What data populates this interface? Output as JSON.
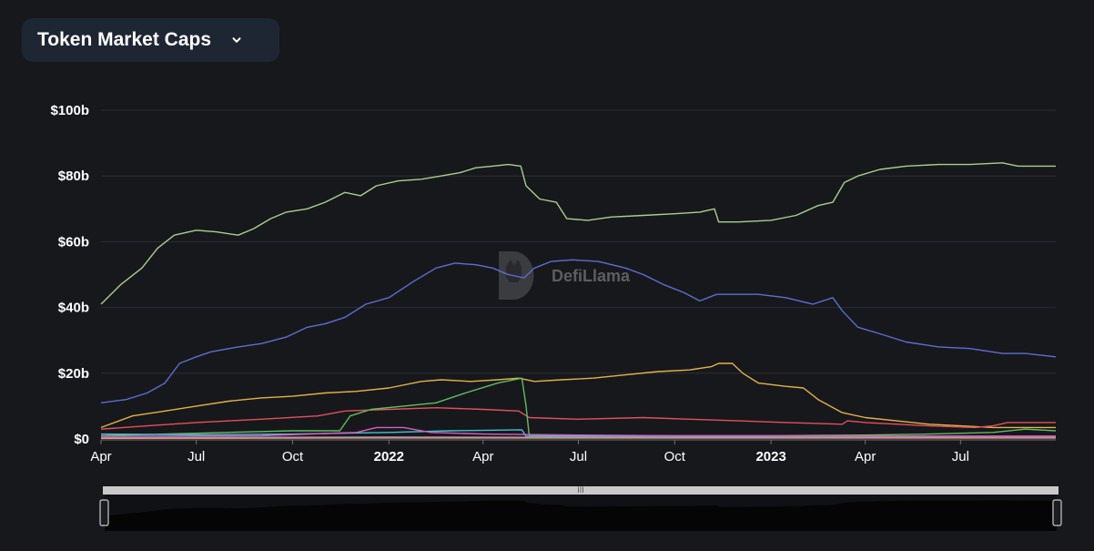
{
  "header": {
    "selector_label": "Token Market Caps",
    "chevron_icon": "chevron-down-icon"
  },
  "watermark": {
    "text": "DefiLlama",
    "icon": "llama-logo-icon"
  },
  "colors": {
    "background": "#17181c",
    "grid": "#2a2d35",
    "selector_bg": "#1e2633",
    "zoom_handle_bar": "#c9c9c9"
  },
  "chart_data": {
    "type": "line",
    "title": "",
    "xlabel": "",
    "ylabel": "",
    "x_range": [
      "2021-04-01",
      "2023-09-30"
    ],
    "y_range": [
      0,
      100
    ],
    "y_unit": "b",
    "grid": "horizontal",
    "y_ticks": [
      {
        "value": 0,
        "label": "$0"
      },
      {
        "value": 20,
        "label": "$20b"
      },
      {
        "value": 40,
        "label": "$40b"
      },
      {
        "value": 60,
        "label": "$60b"
      },
      {
        "value": 80,
        "label": "$80b"
      },
      {
        "value": 100,
        "label": "$100b"
      }
    ],
    "x_ticks": [
      {
        "date": "2021-04-01",
        "label": "Apr",
        "bold": false
      },
      {
        "date": "2021-07-01",
        "label": "Jul",
        "bold": false
      },
      {
        "date": "2021-10-01",
        "label": "Oct",
        "bold": false
      },
      {
        "date": "2022-01-01",
        "label": "2022",
        "bold": true
      },
      {
        "date": "2022-04-01",
        "label": "Apr",
        "bold": false
      },
      {
        "date": "2022-07-01",
        "label": "Jul",
        "bold": false
      },
      {
        "date": "2022-10-01",
        "label": "Oct",
        "bold": false
      },
      {
        "date": "2023-01-01",
        "label": "2023",
        "bold": true
      },
      {
        "date": "2023-04-01",
        "label": "Apr",
        "bold": false
      },
      {
        "date": "2023-07-01",
        "label": "Jul",
        "bold": false
      }
    ],
    "series": [
      {
        "color": "#a8d08d",
        "points": [
          [
            "2021-04-01",
            41
          ],
          [
            "2021-04-20",
            47
          ],
          [
            "2021-05-10",
            52
          ],
          [
            "2021-05-25",
            58
          ],
          [
            "2021-06-10",
            62
          ],
          [
            "2021-07-01",
            63.5
          ],
          [
            "2021-07-20",
            63
          ],
          [
            "2021-08-10",
            62
          ],
          [
            "2021-08-25",
            64
          ],
          [
            "2021-09-10",
            67
          ],
          [
            "2021-09-25",
            69
          ],
          [
            "2021-10-15",
            70
          ],
          [
            "2021-11-01",
            72
          ],
          [
            "2021-11-20",
            75
          ],
          [
            "2021-12-05",
            74
          ],
          [
            "2021-12-20",
            77
          ],
          [
            "2022-01-10",
            78.5
          ],
          [
            "2022-02-01",
            79
          ],
          [
            "2022-02-20",
            80
          ],
          [
            "2022-03-10",
            81
          ],
          [
            "2022-03-25",
            82.5
          ],
          [
            "2022-04-10",
            83
          ],
          [
            "2022-04-25",
            83.5
          ],
          [
            "2022-05-07",
            83
          ],
          [
            "2022-05-12",
            77
          ],
          [
            "2022-05-25",
            73
          ],
          [
            "2022-06-10",
            72
          ],
          [
            "2022-06-20",
            67
          ],
          [
            "2022-07-10",
            66.5
          ],
          [
            "2022-08-01",
            67.5
          ],
          [
            "2022-09-01",
            68
          ],
          [
            "2022-10-01",
            68.5
          ],
          [
            "2022-10-25",
            69
          ],
          [
            "2022-11-08",
            70
          ],
          [
            "2022-11-12",
            66
          ],
          [
            "2022-12-01",
            66
          ],
          [
            "2023-01-01",
            66.5
          ],
          [
            "2023-01-25",
            68
          ],
          [
            "2023-02-15",
            71
          ],
          [
            "2023-03-01",
            72
          ],
          [
            "2023-03-12",
            78
          ],
          [
            "2023-03-25",
            80
          ],
          [
            "2023-04-15",
            82
          ],
          [
            "2023-05-10",
            83
          ],
          [
            "2023-06-10",
            83.5
          ],
          [
            "2023-07-10",
            83.5
          ],
          [
            "2023-08-10",
            84
          ],
          [
            "2023-08-25",
            83
          ],
          [
            "2023-09-30",
            83
          ]
        ]
      },
      {
        "color": "#5b6fd0",
        "points": [
          [
            "2021-04-01",
            11
          ],
          [
            "2021-04-25",
            12
          ],
          [
            "2021-05-15",
            14
          ],
          [
            "2021-06-01",
            17
          ],
          [
            "2021-06-15",
            23
          ],
          [
            "2021-07-01",
            25
          ],
          [
            "2021-07-15",
            26.5
          ],
          [
            "2021-08-10",
            28
          ],
          [
            "2021-09-01",
            29
          ],
          [
            "2021-09-25",
            31
          ],
          [
            "2021-10-15",
            34
          ],
          [
            "2021-11-01",
            35
          ],
          [
            "2021-11-20",
            37
          ],
          [
            "2021-12-10",
            41
          ],
          [
            "2022-01-01",
            43
          ],
          [
            "2022-01-25",
            48
          ],
          [
            "2022-02-15",
            52
          ],
          [
            "2022-03-05",
            53.5
          ],
          [
            "2022-03-25",
            53
          ],
          [
            "2022-04-10",
            52
          ],
          [
            "2022-04-25",
            50
          ],
          [
            "2022-05-10",
            49
          ],
          [
            "2022-05-20",
            52
          ],
          [
            "2022-06-05",
            54
          ],
          [
            "2022-06-25",
            54.5
          ],
          [
            "2022-07-20",
            54
          ],
          [
            "2022-08-15",
            52
          ],
          [
            "2022-09-01",
            50
          ],
          [
            "2022-09-20",
            47
          ],
          [
            "2022-10-10",
            44.5
          ],
          [
            "2022-10-25",
            42
          ],
          [
            "2022-11-10",
            44
          ],
          [
            "2022-12-01",
            44
          ],
          [
            "2022-12-20",
            44
          ],
          [
            "2023-01-15",
            43
          ],
          [
            "2023-02-10",
            41
          ],
          [
            "2023-03-01",
            43
          ],
          [
            "2023-03-10",
            39
          ],
          [
            "2023-03-25",
            34
          ],
          [
            "2023-04-15",
            32
          ],
          [
            "2023-05-10",
            29.5
          ],
          [
            "2023-06-10",
            28
          ],
          [
            "2023-07-10",
            27.5
          ],
          [
            "2023-08-10",
            26
          ],
          [
            "2023-09-01",
            26
          ],
          [
            "2023-09-30",
            25
          ]
        ]
      },
      {
        "color": "#e3b247",
        "points": [
          [
            "2021-04-01",
            3.5
          ],
          [
            "2021-05-01",
            7
          ],
          [
            "2021-06-01",
            8.5
          ],
          [
            "2021-07-01",
            10
          ],
          [
            "2021-08-01",
            11.5
          ],
          [
            "2021-09-01",
            12.5
          ],
          [
            "2021-10-01",
            13
          ],
          [
            "2021-11-01",
            14
          ],
          [
            "2021-12-01",
            14.5
          ],
          [
            "2022-01-01",
            15.5
          ],
          [
            "2022-02-01",
            17.5
          ],
          [
            "2022-02-20",
            18
          ],
          [
            "2022-03-20",
            17.5
          ],
          [
            "2022-04-15",
            18
          ],
          [
            "2022-05-05",
            18.5
          ],
          [
            "2022-05-20",
            17.5
          ],
          [
            "2022-06-15",
            18
          ],
          [
            "2022-07-15",
            18.5
          ],
          [
            "2022-08-15",
            19.5
          ],
          [
            "2022-09-15",
            20.5
          ],
          [
            "2022-10-15",
            21
          ],
          [
            "2022-11-05",
            22
          ],
          [
            "2022-11-12",
            23
          ],
          [
            "2022-11-25",
            23
          ],
          [
            "2022-12-05",
            20
          ],
          [
            "2022-12-20",
            17
          ],
          [
            "2023-01-15",
            16
          ],
          [
            "2023-02-01",
            15.5
          ],
          [
            "2023-02-15",
            12
          ],
          [
            "2023-03-10",
            8
          ],
          [
            "2023-04-01",
            6.5
          ],
          [
            "2023-05-01",
            5.5
          ],
          [
            "2023-06-01",
            4.5
          ],
          [
            "2023-07-01",
            4
          ],
          [
            "2023-08-01",
            3.5
          ],
          [
            "2023-09-30",
            3.5
          ]
        ]
      },
      {
        "color": "#e0525b",
        "points": [
          [
            "2021-04-01",
            3
          ],
          [
            "2021-05-15",
            4
          ],
          [
            "2021-07-01",
            5
          ],
          [
            "2021-09-01",
            6
          ],
          [
            "2021-10-25",
            7
          ],
          [
            "2021-11-20",
            8.5
          ],
          [
            "2022-01-01",
            9
          ],
          [
            "2022-02-15",
            9.5
          ],
          [
            "2022-04-01",
            9
          ],
          [
            "2022-05-05",
            8.5
          ],
          [
            "2022-05-15",
            6.5
          ],
          [
            "2022-07-01",
            6
          ],
          [
            "2022-09-01",
            6.5
          ],
          [
            "2022-10-15",
            6
          ],
          [
            "2022-12-01",
            5.5
          ],
          [
            "2023-01-15",
            5
          ],
          [
            "2023-03-10",
            4.5
          ],
          [
            "2023-03-15",
            5.5
          ],
          [
            "2023-04-01",
            5
          ],
          [
            "2023-06-01",
            4
          ],
          [
            "2023-07-15",
            3.5
          ],
          [
            "2023-08-01",
            4
          ],
          [
            "2023-08-15",
            5
          ],
          [
            "2023-09-30",
            5
          ]
        ]
      },
      {
        "color": "#5fbf61",
        "points": [
          [
            "2021-04-01",
            1
          ],
          [
            "2021-06-01",
            1.5
          ],
          [
            "2021-08-01",
            2
          ],
          [
            "2021-10-01",
            2.5
          ],
          [
            "2021-11-15",
            2.5
          ],
          [
            "2021-11-25",
            7
          ],
          [
            "2021-12-15",
            9
          ],
          [
            "2022-01-15",
            10
          ],
          [
            "2022-02-15",
            11
          ],
          [
            "2022-03-15",
            14
          ],
          [
            "2022-04-15",
            17
          ],
          [
            "2022-05-08",
            18.5
          ],
          [
            "2022-05-12",
            10
          ],
          [
            "2022-05-15",
            1.2
          ],
          [
            "2022-07-01",
            1
          ],
          [
            "2022-10-01",
            1
          ],
          [
            "2023-01-01",
            1
          ],
          [
            "2023-04-01",
            1.2
          ],
          [
            "2023-06-01",
            1.5
          ],
          [
            "2023-08-01",
            2
          ],
          [
            "2023-09-01",
            3
          ],
          [
            "2023-09-30",
            2.5
          ]
        ]
      },
      {
        "color": "#45c3d1",
        "points": [
          [
            "2021-04-01",
            1.5
          ],
          [
            "2021-07-01",
            1.3
          ],
          [
            "2021-10-01",
            1.5
          ],
          [
            "2022-01-01",
            2
          ],
          [
            "2022-03-01",
            2.5
          ],
          [
            "2022-05-08",
            2.8
          ],
          [
            "2022-05-12",
            0.8
          ],
          [
            "2022-08-01",
            0.8
          ],
          [
            "2022-12-01",
            0.7
          ],
          [
            "2023-04-01",
            0.8
          ],
          [
            "2023-09-30",
            0.8
          ]
        ]
      },
      {
        "color": "#d95fbf",
        "points": [
          [
            "2021-04-01",
            0.8
          ],
          [
            "2021-09-01",
            1
          ],
          [
            "2021-12-01",
            2
          ],
          [
            "2021-12-20",
            3.5
          ],
          [
            "2022-01-15",
            3.5
          ],
          [
            "2022-02-10",
            2
          ],
          [
            "2022-04-01",
            1.5
          ],
          [
            "2022-07-01",
            1.2
          ],
          [
            "2022-10-01",
            1
          ],
          [
            "2023-01-01",
            1
          ],
          [
            "2023-05-01",
            0.9
          ],
          [
            "2023-09-30",
            0.9
          ]
        ]
      },
      {
        "color": "#8f86d9",
        "points": [
          [
            "2021-04-01",
            0.4
          ],
          [
            "2022-01-01",
            0.6
          ],
          [
            "2022-07-01",
            0.5
          ],
          [
            "2023-01-01",
            0.5
          ],
          [
            "2023-09-30",
            0.5
          ]
        ]
      },
      {
        "color": "#e39b62",
        "points": [
          [
            "2021-04-01",
            0.2
          ],
          [
            "2022-01-01",
            0.3
          ],
          [
            "2023-09-30",
            0.3
          ]
        ]
      }
    ]
  }
}
